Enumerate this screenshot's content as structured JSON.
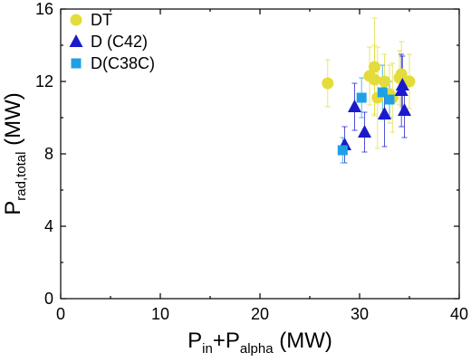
{
  "chart_data": {
    "type": "scatter",
    "xlabel": {
      "main": "P",
      "sub1": "in",
      "mid": "+P",
      "sub2": "alpha",
      "unit": " (MW)"
    },
    "ylabel": {
      "main": "P",
      "sub": "rad,total",
      "unit": " (MW)"
    },
    "xlim": [
      0,
      40
    ],
    "ylim": [
      0,
      16
    ],
    "xticks": [
      "0",
      "10",
      "20",
      "30",
      "40"
    ],
    "yticks": [
      "0",
      "4",
      "8",
      "12",
      "16"
    ],
    "grid": false,
    "legend_position": "top-left",
    "series": [
      {
        "name": "DT",
        "marker": "circle",
        "color": "#e3dc3a",
        "points": [
          {
            "x": 26.8,
            "y": 11.9,
            "err": 1.3
          },
          {
            "x": 31.0,
            "y": 12.3,
            "err": 1.6
          },
          {
            "x": 31.5,
            "y": 12.8,
            "err": 2.7
          },
          {
            "x": 31.8,
            "y": 11.1,
            "err": 2.8
          },
          {
            "x": 31.5,
            "y": 12.1,
            "err": 1.9
          },
          {
            "x": 32.5,
            "y": 12.0,
            "err": 1.5
          },
          {
            "x": 33.0,
            "y": 11.3,
            "err": 1.6
          },
          {
            "x": 33.3,
            "y": 11.1,
            "err": 1.9
          },
          {
            "x": 34.0,
            "y": 12.2,
            "err": 1.5
          },
          {
            "x": 34.2,
            "y": 12.4,
            "err": 1.8
          },
          {
            "x": 35.0,
            "y": 12.0,
            "err": 1.5
          }
        ]
      },
      {
        "name": "D (C42)",
        "marker": "triangle",
        "color": "#1a1acc",
        "points": [
          {
            "x": 28.5,
            "y": 8.5,
            "err": 1.0
          },
          {
            "x": 29.5,
            "y": 10.6,
            "err": 1.3
          },
          {
            "x": 30.5,
            "y": 9.2,
            "err": 1.1
          },
          {
            "x": 32.5,
            "y": 10.2,
            "err": 1.8
          },
          {
            "x": 34.2,
            "y": 11.5,
            "err": 2.0
          },
          {
            "x": 34.3,
            "y": 11.8,
            "err": 1.6
          },
          {
            "x": 34.5,
            "y": 10.4,
            "err": 1.5
          }
        ]
      },
      {
        "name": "D(C38C)",
        "marker": "square",
        "color": "#1fa0e6",
        "points": [
          {
            "x": 28.3,
            "y": 8.2,
            "err": 0.7
          },
          {
            "x": 30.2,
            "y": 11.1,
            "err": 1.1
          },
          {
            "x": 32.3,
            "y": 11.4,
            "err": 1.5
          },
          {
            "x": 33.0,
            "y": 11.0,
            "err": 1.0
          }
        ]
      }
    ]
  }
}
